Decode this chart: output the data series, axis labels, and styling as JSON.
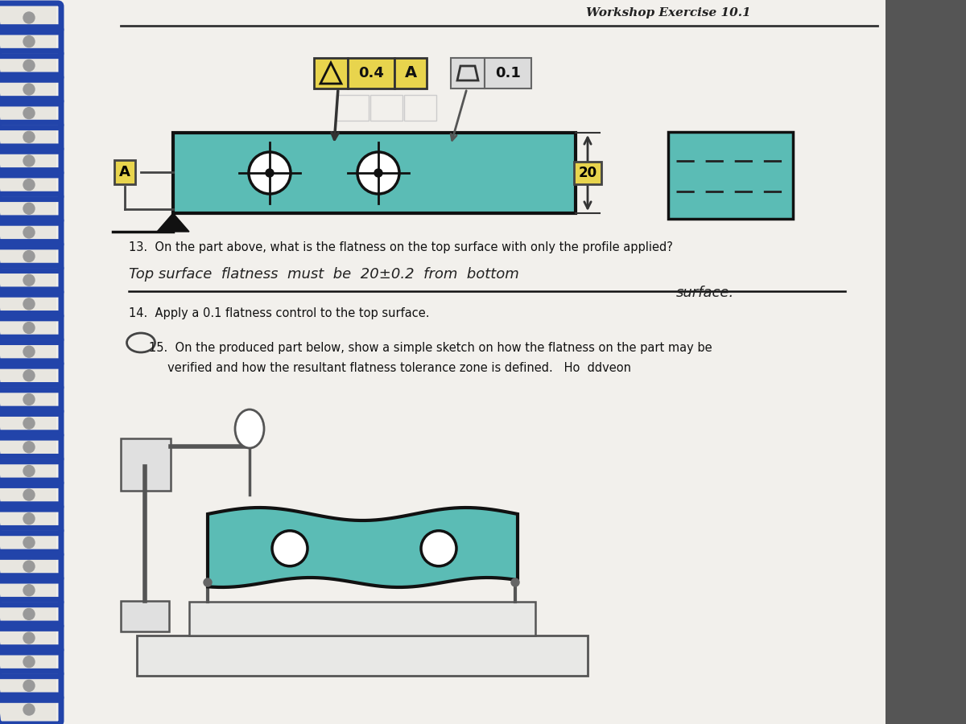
{
  "page_bg": "#e8e6e0",
  "paper_bg": "#f2f0ec",
  "teal_color": "#5bbcb5",
  "yellow_color": "#e8d44d",
  "dark": "#1a1a1a",
  "gray": "#888888",
  "spiral_color": "#2244aa",
  "right_shadow": "#aaaaaa",
  "title": "Workshop Exercise 10.1",
  "q13": "13.  On the part above, what is the flatness on the top surface with only the profile applied?",
  "a13_line1": "Top surface  flatness  must  be  20±0.2  from  bottom",
  "a13_line2": "surface.",
  "q14": "14.  Apply a 0.1 flatness control to the top surface.",
  "q15_l1": "15.  On the produced part below, show a simple sketch on how the flatness on the part may be",
  "q15_l2": "     verified and how the resultant flatness tolerance zone is defined.   Ho  ddveon"
}
